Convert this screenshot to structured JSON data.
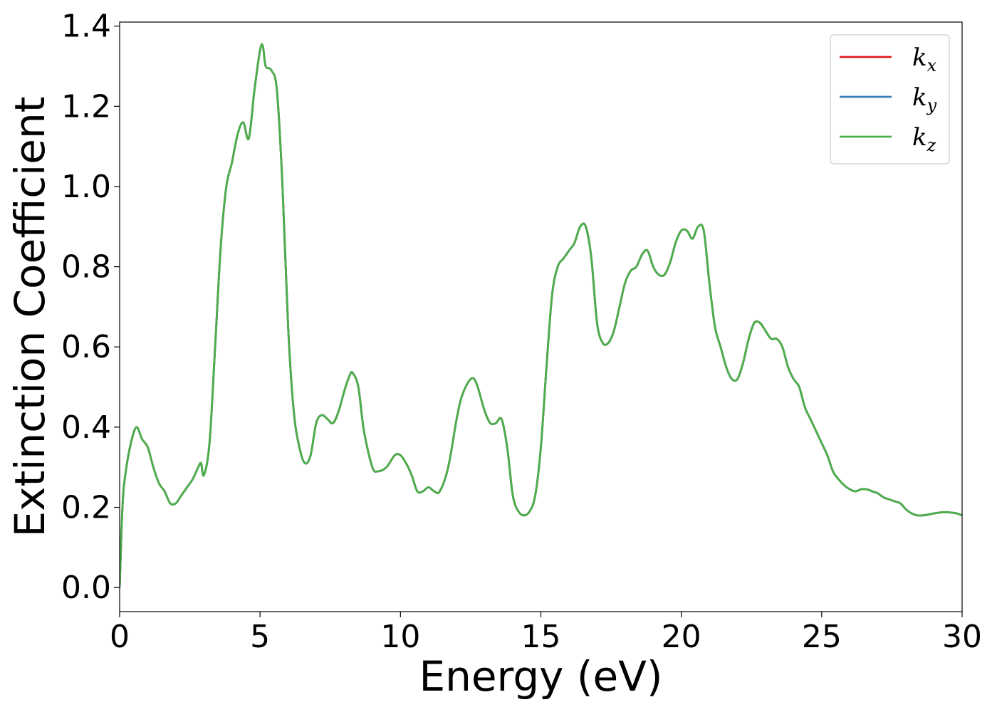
{
  "chart_data": {
    "type": "line",
    "title": "",
    "xlabel": "Energy (eV)",
    "ylabel": "Extinction Coefficient",
    "xlim": [
      0,
      30
    ],
    "ylim": [
      -0.06,
      1.41
    ],
    "xticks": [
      0,
      5,
      10,
      15,
      20,
      25,
      30
    ],
    "xtick_labels": [
      "0",
      "5",
      "10",
      "15",
      "20",
      "25",
      "30"
    ],
    "yticks": [
      0.0,
      0.2,
      0.4,
      0.6,
      0.8,
      1.0,
      1.2,
      1.4
    ],
    "ytick_labels": [
      "0.0",
      "0.2",
      "0.4",
      "0.6",
      "0.8",
      "1.0",
      "1.2",
      "1.4"
    ],
    "grid": false,
    "legend_position": "top-right",
    "x": [
      0,
      0.1,
      0.2,
      0.4,
      0.6,
      0.8,
      1.0,
      1.2,
      1.4,
      1.6,
      1.8,
      2.0,
      2.2,
      2.4,
      2.6,
      2.8,
      2.9,
      3.0,
      3.2,
      3.4,
      3.6,
      3.8,
      4.0,
      4.2,
      4.4,
      4.6,
      4.8,
      5.0,
      5.1,
      5.2,
      5.4,
      5.6,
      5.8,
      6.0,
      6.2,
      6.4,
      6.6,
      6.8,
      7.0,
      7.2,
      7.4,
      7.6,
      7.8,
      8.0,
      8.2,
      8.3,
      8.5,
      8.7,
      9.0,
      9.2,
      9.5,
      9.8,
      10.0,
      10.2,
      10.4,
      10.6,
      10.8,
      11.0,
      11.2,
      11.4,
      11.7,
      12.0,
      12.2,
      12.5,
      12.7,
      13.0,
      13.2,
      13.4,
      13.6,
      13.8,
      14.0,
      14.2,
      14.4,
      14.6,
      14.8,
      15.0,
      15.2,
      15.4,
      15.6,
      15.8,
      16.0,
      16.2,
      16.4,
      16.6,
      16.8,
      17.0,
      17.2,
      17.4,
      17.6,
      17.8,
      18.0,
      18.2,
      18.4,
      18.6,
      18.8,
      19.0,
      19.2,
      19.4,
      19.6,
      19.8,
      20.0,
      20.2,
      20.4,
      20.6,
      20.8,
      21.0,
      21.2,
      21.4,
      21.6,
      21.8,
      22.0,
      22.2,
      22.4,
      22.6,
      22.8,
      23.0,
      23.2,
      23.4,
      23.6,
      23.8,
      24.0,
      24.2,
      24.4,
      24.6,
      24.8,
      25.0,
      25.2,
      25.4,
      25.6,
      25.8,
      26.0,
      26.2,
      26.4,
      26.6,
      26.8,
      27.0,
      27.2,
      27.4,
      27.6,
      27.8,
      28.0,
      28.2,
      28.4,
      28.6,
      28.8,
      29.0,
      29.2,
      29.4,
      29.6,
      29.8,
      30.0
    ],
    "series": [
      {
        "name": "k_x",
        "color": "#e41a1c",
        "values": [
          0.0,
          0.2,
          0.28,
          0.36,
          0.4,
          0.37,
          0.35,
          0.3,
          0.26,
          0.24,
          0.21,
          0.21,
          0.23,
          0.25,
          0.27,
          0.3,
          0.31,
          0.28,
          0.36,
          0.6,
          0.85,
          1.0,
          1.06,
          1.13,
          1.16,
          1.12,
          1.24,
          1.34,
          1.35,
          1.3,
          1.29,
          1.24,
          1.0,
          0.65,
          0.44,
          0.35,
          0.31,
          0.33,
          0.41,
          0.43,
          0.42,
          0.41,
          0.44,
          0.49,
          0.53,
          0.535,
          0.5,
          0.39,
          0.3,
          0.29,
          0.3,
          0.33,
          0.33,
          0.31,
          0.28,
          0.24,
          0.24,
          0.25,
          0.24,
          0.24,
          0.3,
          0.42,
          0.48,
          0.52,
          0.51,
          0.44,
          0.41,
          0.41,
          0.42,
          0.35,
          0.23,
          0.19,
          0.18,
          0.19,
          0.23,
          0.35,
          0.55,
          0.73,
          0.8,
          0.82,
          0.84,
          0.86,
          0.9,
          0.9,
          0.82,
          0.66,
          0.61,
          0.61,
          0.64,
          0.7,
          0.76,
          0.79,
          0.8,
          0.83,
          0.84,
          0.8,
          0.78,
          0.78,
          0.81,
          0.86,
          0.89,
          0.89,
          0.87,
          0.9,
          0.89,
          0.76,
          0.65,
          0.6,
          0.55,
          0.52,
          0.52,
          0.56,
          0.62,
          0.66,
          0.66,
          0.64,
          0.62,
          0.62,
          0.6,
          0.55,
          0.52,
          0.5,
          0.45,
          0.42,
          0.39,
          0.36,
          0.33,
          0.29,
          0.27,
          0.255,
          0.245,
          0.24,
          0.245,
          0.245,
          0.24,
          0.235,
          0.225,
          0.22,
          0.215,
          0.21,
          0.195,
          0.185,
          0.18,
          0.18,
          0.182,
          0.185,
          0.187,
          0.188,
          0.187,
          0.185,
          0.18
        ]
      },
      {
        "name": "k_y",
        "color": "#377eb8",
        "values": [
          0.0,
          0.2,
          0.28,
          0.36,
          0.4,
          0.37,
          0.35,
          0.3,
          0.26,
          0.24,
          0.21,
          0.21,
          0.23,
          0.25,
          0.27,
          0.3,
          0.31,
          0.28,
          0.36,
          0.6,
          0.85,
          1.0,
          1.06,
          1.13,
          1.16,
          1.12,
          1.24,
          1.34,
          1.35,
          1.3,
          1.29,
          1.24,
          1.0,
          0.65,
          0.44,
          0.35,
          0.31,
          0.33,
          0.41,
          0.43,
          0.42,
          0.41,
          0.44,
          0.49,
          0.53,
          0.535,
          0.5,
          0.39,
          0.3,
          0.29,
          0.3,
          0.33,
          0.33,
          0.31,
          0.28,
          0.24,
          0.24,
          0.25,
          0.24,
          0.24,
          0.3,
          0.42,
          0.48,
          0.52,
          0.51,
          0.44,
          0.41,
          0.41,
          0.42,
          0.35,
          0.23,
          0.19,
          0.18,
          0.19,
          0.23,
          0.35,
          0.55,
          0.73,
          0.8,
          0.82,
          0.84,
          0.86,
          0.9,
          0.9,
          0.82,
          0.66,
          0.61,
          0.61,
          0.64,
          0.7,
          0.76,
          0.79,
          0.8,
          0.83,
          0.84,
          0.8,
          0.78,
          0.78,
          0.81,
          0.86,
          0.89,
          0.89,
          0.87,
          0.9,
          0.89,
          0.76,
          0.65,
          0.6,
          0.55,
          0.52,
          0.52,
          0.56,
          0.62,
          0.66,
          0.66,
          0.64,
          0.62,
          0.62,
          0.6,
          0.55,
          0.52,
          0.5,
          0.45,
          0.42,
          0.39,
          0.36,
          0.33,
          0.29,
          0.27,
          0.255,
          0.245,
          0.24,
          0.245,
          0.245,
          0.24,
          0.235,
          0.225,
          0.22,
          0.215,
          0.21,
          0.195,
          0.185,
          0.18,
          0.18,
          0.182,
          0.185,
          0.187,
          0.188,
          0.187,
          0.185,
          0.18
        ]
      },
      {
        "name": "k_z",
        "color": "#4daf4a",
        "values": [
          0.0,
          0.2,
          0.28,
          0.36,
          0.4,
          0.37,
          0.35,
          0.3,
          0.26,
          0.24,
          0.21,
          0.21,
          0.23,
          0.25,
          0.27,
          0.3,
          0.31,
          0.28,
          0.36,
          0.6,
          0.85,
          1.0,
          1.06,
          1.13,
          1.16,
          1.12,
          1.24,
          1.34,
          1.35,
          1.3,
          1.29,
          1.24,
          1.0,
          0.65,
          0.44,
          0.35,
          0.31,
          0.33,
          0.41,
          0.43,
          0.42,
          0.41,
          0.44,
          0.49,
          0.53,
          0.535,
          0.5,
          0.39,
          0.3,
          0.29,
          0.3,
          0.33,
          0.33,
          0.31,
          0.28,
          0.24,
          0.24,
          0.25,
          0.24,
          0.24,
          0.3,
          0.42,
          0.48,
          0.52,
          0.51,
          0.44,
          0.41,
          0.41,
          0.42,
          0.35,
          0.23,
          0.19,
          0.18,
          0.19,
          0.23,
          0.35,
          0.55,
          0.73,
          0.8,
          0.82,
          0.84,
          0.86,
          0.9,
          0.9,
          0.82,
          0.66,
          0.61,
          0.61,
          0.64,
          0.7,
          0.76,
          0.79,
          0.8,
          0.83,
          0.84,
          0.8,
          0.78,
          0.78,
          0.81,
          0.86,
          0.89,
          0.89,
          0.87,
          0.9,
          0.89,
          0.76,
          0.65,
          0.6,
          0.55,
          0.52,
          0.52,
          0.56,
          0.62,
          0.66,
          0.66,
          0.64,
          0.62,
          0.62,
          0.6,
          0.55,
          0.52,
          0.5,
          0.45,
          0.42,
          0.39,
          0.36,
          0.33,
          0.29,
          0.27,
          0.255,
          0.245,
          0.24,
          0.245,
          0.245,
          0.24,
          0.235,
          0.225,
          0.22,
          0.215,
          0.21,
          0.195,
          0.185,
          0.18,
          0.18,
          0.182,
          0.185,
          0.187,
          0.188,
          0.187,
          0.185,
          0.18
        ]
      }
    ],
    "legend": [
      {
        "base": "k",
        "sub": "x",
        "color": "#e41a1c"
      },
      {
        "base": "k",
        "sub": "y",
        "color": "#377eb8"
      },
      {
        "base": "k",
        "sub": "z",
        "color": "#4daf4a"
      }
    ]
  }
}
